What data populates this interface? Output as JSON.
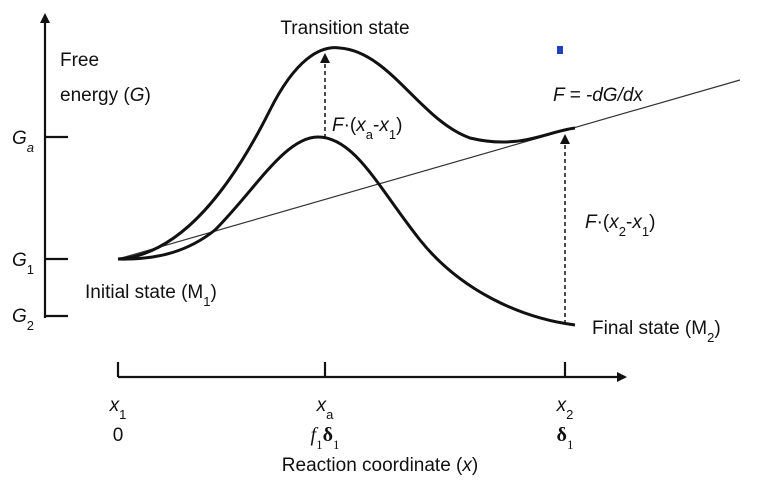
{
  "labels": {
    "transition_state": "Transition state",
    "free_energy": [
      "Free",
      "energy (",
      "G",
      ")"
    ],
    "force": "F = -dG/dx",
    "force_a": [
      "F",
      "·(",
      "x",
      "a",
      "-",
      "x",
      "1",
      ")"
    ],
    "force_2": [
      "F",
      "·(",
      "x",
      "2",
      "-",
      "x",
      "1",
      ")"
    ],
    "initial_state": [
      "Initial state (M",
      "1",
      ")"
    ],
    "final_state": [
      "Final state (M",
      "2",
      ")"
    ],
    "x_axis_title": [
      "Reaction coordinate (",
      "x",
      ")"
    ]
  },
  "y_ticks": [
    [
      "G",
      "a"
    ],
    [
      "G",
      "1"
    ],
    [
      "G",
      "2"
    ]
  ],
  "x_ticks": [
    {
      "var": [
        "x",
        "1"
      ],
      "value": [
        "0"
      ]
    },
    {
      "var": [
        "x",
        "a"
      ],
      "value": [
        "f",
        "1",
        "δ",
        "1"
      ]
    },
    {
      "var": [
        "x",
        "2"
      ],
      "value": [
        "δ",
        "1"
      ]
    }
  ]
}
